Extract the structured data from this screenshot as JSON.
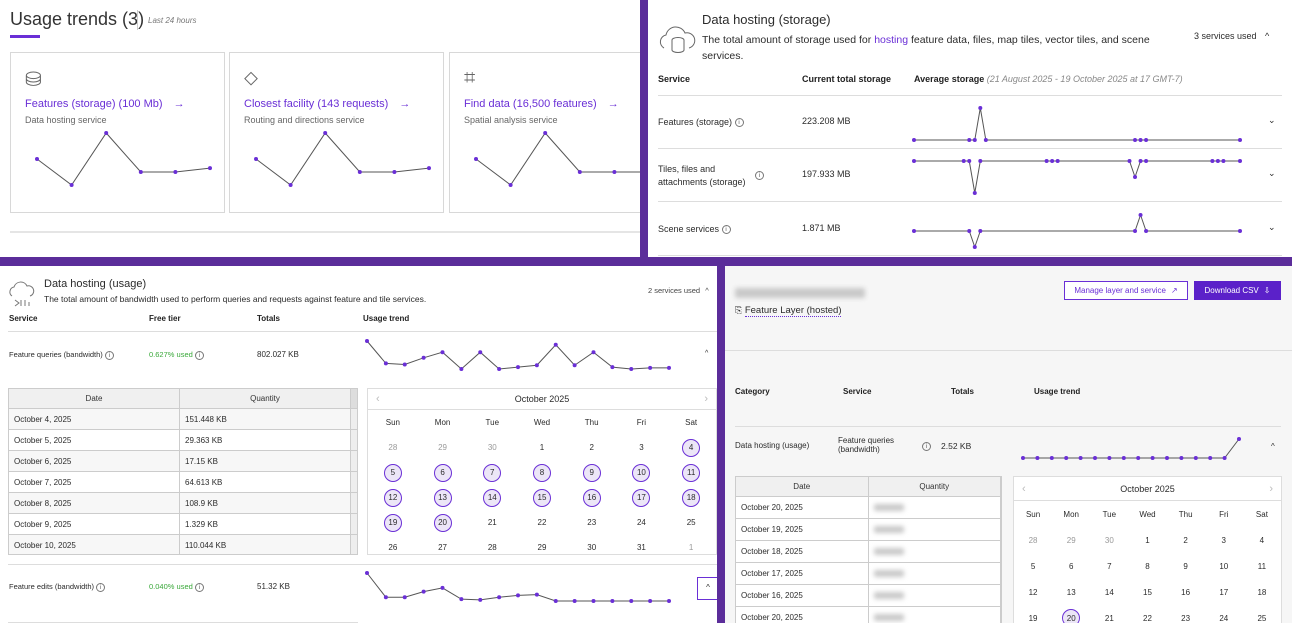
{
  "colors": {
    "accent": "#6a2fd6",
    "frame": "#5b2d9a",
    "green": "#3aa83a"
  },
  "usage_trends": {
    "title": "Usage trends (3)",
    "period": "Last 24 hours",
    "cards": [
      {
        "icon": "database-icon",
        "title": "Features (storage) (100 Mb)",
        "arrow": "→",
        "subtitle": "Data hosting service",
        "trend": [
          3,
          1,
          5,
          2,
          2,
          2.3
        ]
      },
      {
        "icon": "directions-sign-icon",
        "title": "Closest facility (143 requests)",
        "arrow": "→",
        "subtitle": "Routing and directions service",
        "trend": [
          3,
          1,
          5,
          2,
          2,
          2.3
        ]
      },
      {
        "icon": "spatial-analysis-icon",
        "title": "Find data (16,500 features)",
        "arrow": "→",
        "subtitle": "Spatial analysis service",
        "trend": [
          3,
          1,
          5,
          2,
          2,
          2
        ]
      }
    ]
  },
  "storage": {
    "title": "Data hosting (storage)",
    "desc_before": "The total amount of storage used for ",
    "desc_link": "hosting",
    "desc_after": " feature data, files, map tiles, vector tiles, and scene services.",
    "services_used": "3 services used",
    "headers": {
      "service": "Service",
      "current": "Current total storage",
      "average": "Average storage",
      "range": "(21 August 2025 - 19 October 2025 at 17 GMT-7)"
    },
    "rows": [
      {
        "service": "Features (storage)",
        "value": "223.208 MB",
        "trend": [
          [
            0,
            0
          ],
          [
            10,
            0
          ],
          [
            11,
            0
          ],
          [
            12,
            2
          ],
          [
            13,
            0
          ],
          [
            40,
            0
          ],
          [
            41,
            0
          ],
          [
            42,
            0
          ],
          [
            59,
            0
          ]
        ]
      },
      {
        "service": "Tiles, files and attachments (storage)",
        "value": "197.933 MB",
        "trend": [
          [
            0,
            0
          ],
          [
            9,
            0
          ],
          [
            10,
            0
          ],
          [
            11,
            -2
          ],
          [
            12,
            0
          ],
          [
            24,
            0
          ],
          [
            25,
            0
          ],
          [
            26,
            0
          ],
          [
            39,
            0
          ],
          [
            40,
            -1
          ],
          [
            41,
            0
          ],
          [
            42,
            0
          ],
          [
            54,
            0
          ],
          [
            55,
            0
          ],
          [
            56,
            0
          ],
          [
            59,
            0
          ]
        ]
      },
      {
        "service": "Scene services",
        "value": "1.871 MB",
        "trend": [
          [
            0,
            0
          ],
          [
            10,
            0
          ],
          [
            11,
            -1
          ],
          [
            12,
            0
          ],
          [
            40,
            0
          ],
          [
            41,
            1
          ],
          [
            42,
            0
          ],
          [
            59,
            0
          ]
        ]
      }
    ]
  },
  "usage": {
    "title": "Data hosting (usage)",
    "desc": "The total amount of bandwidth used to perform queries and requests against feature and tile services.",
    "services_used": "2 services used",
    "headers": {
      "service": "Service",
      "free": "Free tier",
      "totals": "Totals",
      "trend": "Usage trend"
    },
    "rows": [
      {
        "service": "Feature queries (bandwidth)",
        "free": "0.627% used",
        "total": "802.027 KB",
        "trend": [
          9,
          3,
          2.7,
          4.5,
          6,
          1.5,
          6,
          1.5,
          2,
          2.5,
          8,
          2.5,
          6,
          2,
          1.5,
          1.8,
          1.8
        ]
      },
      {
        "service": "Feature edits (bandwidth)",
        "free": "0.040% used",
        "total": "51.32 KB",
        "trend": [
          8,
          1.5,
          1.5,
          3,
          4,
          1,
          0.8,
          1.5,
          2,
          2.2,
          0.5,
          0.5,
          0.5,
          0.5,
          0.5,
          0.5,
          0.5
        ]
      }
    ],
    "table": {
      "date": "Date",
      "quantity": "Quantity",
      "rows": [
        [
          "October 4, 2025",
          "151.448 KB"
        ],
        [
          "October 5, 2025",
          "29.363 KB"
        ],
        [
          "October 6, 2025",
          "17.15 KB"
        ],
        [
          "October 7, 2025",
          "64.613 KB"
        ],
        [
          "October 8, 2025",
          "108.9 KB"
        ],
        [
          "October 9, 2025",
          "1.329 KB"
        ],
        [
          "October 10, 2025",
          "110.044 KB"
        ]
      ]
    },
    "calendar": {
      "month": "October 2025",
      "days": [
        "Sun",
        "Mon",
        "Tue",
        "Wed",
        "Thu",
        "Fri",
        "Sat"
      ],
      "dates": [
        "28",
        "29",
        "30",
        "1",
        "2",
        "3",
        "4",
        "5",
        "6",
        "7",
        "8",
        "9",
        "10",
        "11",
        "12",
        "13",
        "14",
        "15",
        "16",
        "17",
        "18",
        "19",
        "20",
        "21",
        "22",
        "23",
        "24",
        "25",
        "26",
        "27",
        "28",
        "29",
        "30",
        "31",
        "1"
      ],
      "selected": [
        "4",
        "5",
        "6",
        "7",
        "8",
        "9",
        "10",
        "11",
        "12",
        "13",
        "14",
        "15",
        "16",
        "17",
        "18",
        "19",
        "20"
      ]
    }
  },
  "detail": {
    "layer_type": "Feature Layer (hosted)",
    "manage": "Manage layer and service",
    "download": "Download CSV",
    "headers": {
      "category": "Category",
      "service": "Service",
      "totals": "Totals",
      "trend": "Usage trend"
    },
    "row": {
      "category": "Data hosting (usage)",
      "service": "Feature queries (bandwidth)",
      "total": "2.52 KB",
      "trend": [
        0,
        0,
        0,
        0,
        0,
        0,
        0,
        0,
        0,
        0,
        0,
        0,
        0,
        0,
        0,
        1
      ]
    },
    "table": {
      "date": "Date",
      "quantity": "Quantity",
      "dates": [
        "October 20, 2025",
        "October 19, 2025",
        "October 18, 2025",
        "October 17, 2025",
        "October 16, 2025",
        "October 20, 2025"
      ]
    },
    "calendar": {
      "month": "October 2025",
      "days": [
        "Sun",
        "Mon",
        "Tue",
        "Wed",
        "Thu",
        "Fri",
        "Sat"
      ],
      "dates": [
        "28",
        "29",
        "30",
        "1",
        "2",
        "3",
        "4",
        "5",
        "6",
        "7",
        "8",
        "9",
        "10",
        "11",
        "12",
        "13",
        "14",
        "15",
        "16",
        "17",
        "18",
        "19",
        "20",
        "21",
        "22",
        "23",
        "24",
        "25"
      ],
      "selected": [
        "20"
      ]
    }
  }
}
